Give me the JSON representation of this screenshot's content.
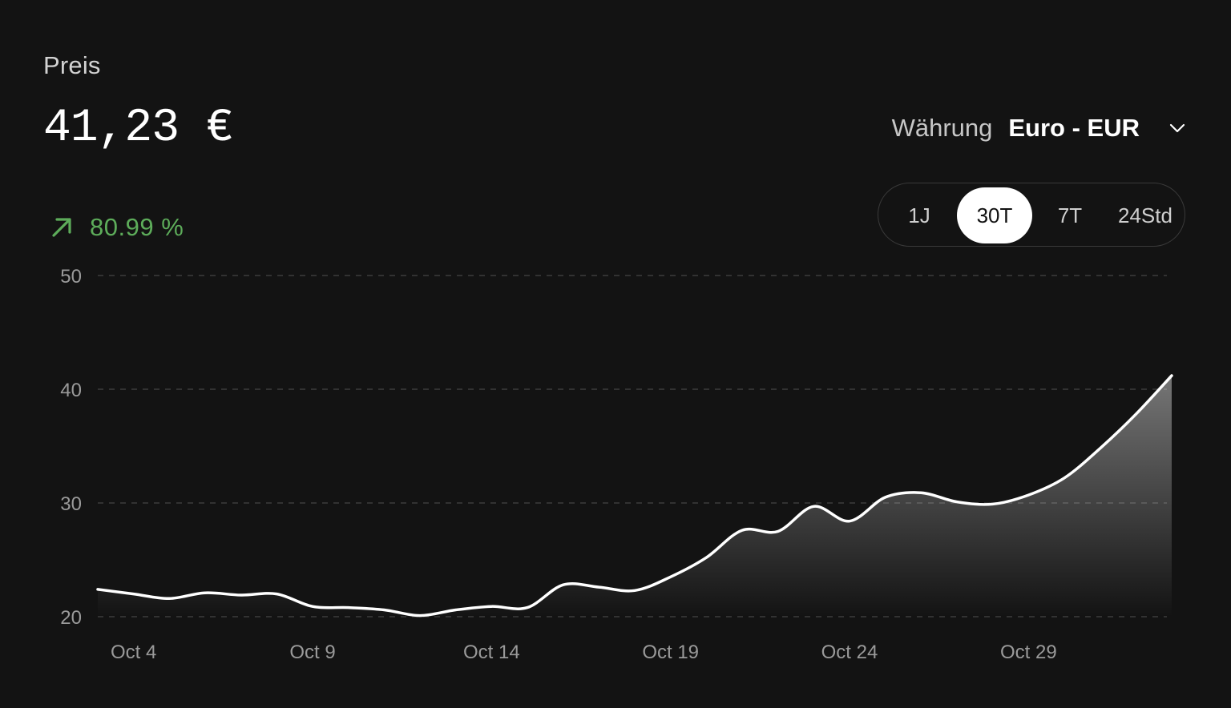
{
  "header": {
    "title": "Preis",
    "price": "41,23 €",
    "change": "80.99 %",
    "change_direction": "up",
    "change_color": "#5dac5a"
  },
  "currency": {
    "label": "Währung",
    "value": "Euro - EUR"
  },
  "range": {
    "options": [
      "1J",
      "30T",
      "7T",
      "24Std"
    ],
    "selected": "30T"
  },
  "chart_data": {
    "type": "area",
    "x_dates": [
      "Oct 3",
      "Oct 4",
      "Oct 5",
      "Oct 6",
      "Oct 7",
      "Oct 8",
      "Oct 9",
      "Oct 10",
      "Oct 11",
      "Oct 12",
      "Oct 13",
      "Oct 14",
      "Oct 15",
      "Oct 16",
      "Oct 17",
      "Oct 18",
      "Oct 19",
      "Oct 20",
      "Oct 21",
      "Oct 22",
      "Oct 23",
      "Oct 24",
      "Oct 25",
      "Oct 26",
      "Oct 27",
      "Oct 28",
      "Oct 29",
      "Oct 30",
      "Oct 31",
      "Nov 1",
      "Nov 2"
    ],
    "values": [
      22.4,
      22.0,
      21.6,
      22.1,
      21.9,
      22.0,
      20.9,
      20.8,
      20.6,
      20.1,
      20.6,
      20.9,
      20.8,
      22.8,
      22.6,
      22.3,
      23.5,
      25.2,
      27.6,
      27.5,
      29.7,
      28.4,
      30.5,
      30.9,
      30.1,
      29.9,
      30.7,
      32.2,
      34.8,
      37.8,
      41.2
    ],
    "ylim": [
      20,
      50
    ],
    "yticks": [
      20,
      30,
      40,
      50
    ],
    "xtick_labels": [
      "Oct 4",
      "Oct 9",
      "Oct 14",
      "Oct 19",
      "Oct 24",
      "Oct 29"
    ],
    "grid": true,
    "line_color": "#ffffff"
  }
}
